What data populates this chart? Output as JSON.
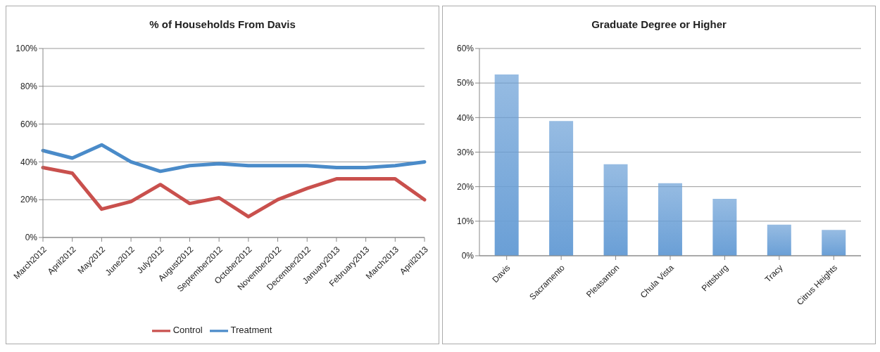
{
  "chart_data": [
    {
      "type": "line",
      "title": "% of Households From Davis",
      "categories": [
        "March2012",
        "April2012",
        "May2012",
        "June2012",
        "July2012",
        "August2012",
        "September2012",
        "October2012",
        "November2012",
        "December2012",
        "January2013",
        "February2013",
        "March2013",
        "April2013"
      ],
      "series": [
        {
          "name": "Treatment",
          "color": "#4a8bc9",
          "values": [
            46,
            42,
            49,
            40,
            35,
            38,
            39,
            38,
            38,
            38,
            37,
            37,
            38,
            40
          ]
        },
        {
          "name": "Control",
          "color": "#c9504d",
          "values": [
            37,
            34,
            15,
            19,
            28,
            18,
            21,
            11,
            20,
            26,
            31,
            31,
            31,
            20
          ]
        }
      ],
      "ylim": [
        0,
        100
      ],
      "yticks": [
        {
          "value": 0,
          "label": "0%"
        },
        {
          "value": 20,
          "label": "20%"
        },
        {
          "value": 40,
          "label": "40%"
        },
        {
          "value": 60,
          "label": "60%"
        },
        {
          "value": 80,
          "label": "80%"
        },
        {
          "value": 100,
          "label": "100%"
        }
      ],
      "grid": "y",
      "legend": "bottom",
      "marker": "none",
      "line_style": "solid"
    },
    {
      "type": "bar",
      "title": "Graduate Degree or Higher",
      "categories": [
        "Davis",
        "Sacramento",
        "Pleasanton",
        "Chula Vista",
        "Pittsburg",
        "Tracy",
        "Citrus Heights"
      ],
      "values": [
        52.5,
        39,
        26.5,
        21,
        16.5,
        9,
        7.5
      ],
      "color": "#6a9fd6",
      "ylim": [
        0,
        60
      ],
      "yticks": [
        {
          "value": 0,
          "label": "0%"
        },
        {
          "value": 10,
          "label": "10%"
        },
        {
          "value": 20,
          "label": "20%"
        },
        {
          "value": 30,
          "label": "30%"
        },
        {
          "value": 40,
          "label": "40%"
        },
        {
          "value": 50,
          "label": "50%"
        },
        {
          "value": 60,
          "label": "60%"
        }
      ],
      "grid": "y"
    }
  ]
}
